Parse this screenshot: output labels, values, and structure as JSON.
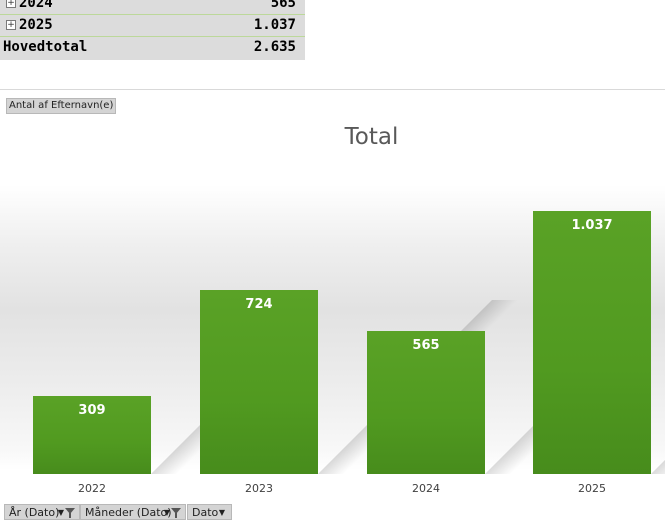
{
  "pivot": {
    "rows": [
      {
        "label": "2024",
        "value": "565",
        "expand_symbol": "+"
      },
      {
        "label": "2025",
        "value": "1.037",
        "expand_symbol": "+"
      }
    ],
    "total": {
      "label": "Hovedtotal",
      "value": "2.635"
    }
  },
  "value_field_button": "Antal af Efternavn(e)",
  "chart_data": {
    "type": "bar",
    "title": "Total",
    "categories": [
      "2022",
      "2023",
      "2024",
      "2025"
    ],
    "values": [
      309,
      724,
      565,
      1037
    ],
    "data_labels": [
      "309",
      "724",
      "565",
      "1.037"
    ],
    "ylim": [
      0,
      1200
    ],
    "bar_color": "#519a20",
    "grid": false,
    "legend": "none"
  },
  "filter_buttons": [
    {
      "label": "År (Dato)",
      "icon": "filter-icon"
    },
    {
      "label": "Måneder (Dato)",
      "icon": "filter-icon"
    },
    {
      "label": "Dato",
      "icon": "dropdown-arrow-icon"
    }
  ]
}
